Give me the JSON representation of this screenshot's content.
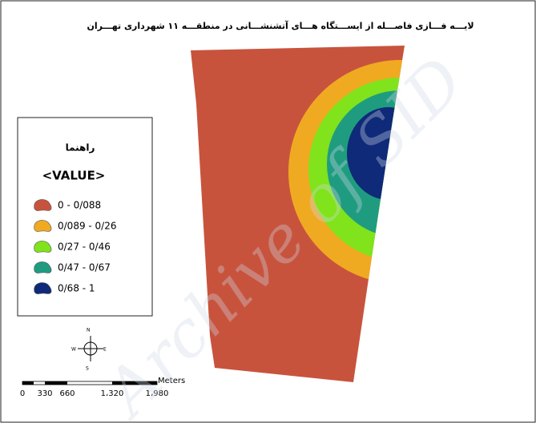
{
  "title": "لایـــه فـــازی فاصـــله از ایســـتگاه هـــای آتشنشـــانی در منطقـــه ۱۱ شهرداری تهـــران",
  "legend": {
    "title": "راهنما",
    "field": "<VALUE>",
    "classes": [
      {
        "label": "0 - 0/088",
        "color": "#c8533d"
      },
      {
        "label": "0/089 - 0/26",
        "color": "#f0aa22"
      },
      {
        "label": "0/27 - 0/46",
        "color": "#80e31c"
      },
      {
        "label": "0/47 - 0/67",
        "color": "#1f9c80"
      },
      {
        "label": "0/68 - 1",
        "color": "#0e2a78"
      }
    ]
  },
  "north_arrow": {
    "n": "N",
    "s": "S",
    "e": "E",
    "w": "W"
  },
  "scale_bar": {
    "labels": [
      "0",
      "330",
      "660",
      "1،320",
      "1،980"
    ],
    "unit": "Meters"
  },
  "watermark": "Archive of SID"
}
